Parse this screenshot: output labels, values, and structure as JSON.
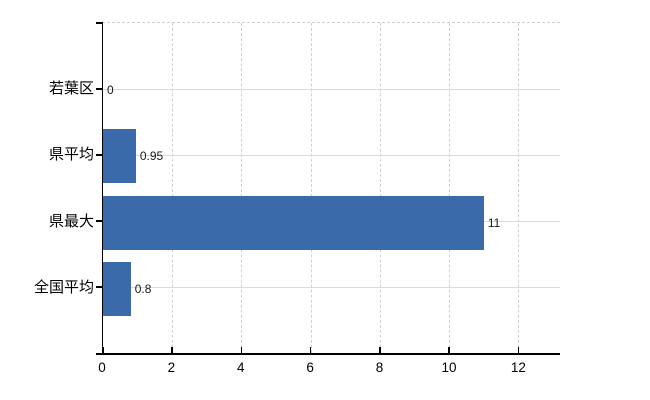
{
  "chart_data": {
    "type": "bar",
    "orientation": "horizontal",
    "title": "",
    "xlabel": "",
    "ylabel": "",
    "categories": [
      "若葉区",
      "県平均",
      "県最大",
      "全国平均"
    ],
    "values": [
      0,
      0.95,
      11,
      0.8
    ],
    "value_labels": [
      "0",
      "0.95",
      "11",
      "0.8"
    ],
    "x_ticks": [
      0,
      2,
      4,
      6,
      8,
      10,
      12
    ],
    "x_tick_labels": [
      "0",
      "2",
      "4",
      "6",
      "8",
      "10",
      "12"
    ],
    "xlim": [
      0,
      13.2
    ],
    "grid": {
      "vertical_style": "dashed",
      "horizontal_style": "solid",
      "top_border_style": "dashed"
    },
    "legend": "none",
    "colors": {
      "bar": "#3a6aa9",
      "axis": "#000000",
      "vertical_grid": "#d4ced4",
      "horizontal_grid": "#d6dcd6",
      "value_label_text": "#1a1a1a",
      "axis_label_text": "#000000",
      "background": "#ffffff"
    }
  }
}
